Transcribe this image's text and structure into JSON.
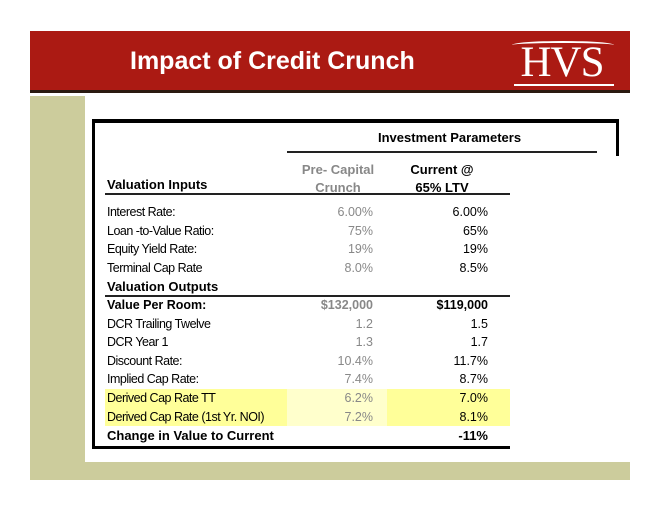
{
  "header": {
    "title": "Impact of Credit Crunch",
    "logo": "HVS"
  },
  "table": {
    "group_header": "Investment Parameters",
    "inputs_header": "Valuation Inputs",
    "col_pre": [
      "Pre- Capital",
      "Crunch"
    ],
    "col_cur": [
      "Current @",
      "65% LTV"
    ],
    "inputs": [
      {
        "label": "Interest Rate:",
        "pre": "6.00%",
        "cur": "6.00%"
      },
      {
        "label": "Loan -to-Value Ratio:",
        "pre": "75%",
        "cur": "65%"
      },
      {
        "label": "Equity Yield Rate:",
        "pre": "19%",
        "cur": "19%"
      },
      {
        "label": "Terminal Cap Rate",
        "pre": "8.0%",
        "cur": "8.5%"
      }
    ],
    "outputs_header": "Valuation Outputs",
    "outputs": [
      {
        "label": "Value Per Room:",
        "pre": "$132,000",
        "cur": "$119,000"
      },
      {
        "label": "DCR Trailing Twelve",
        "pre": "1.2",
        "cur": "1.5"
      },
      {
        "label": "DCR Year 1",
        "pre": "1.3",
        "cur": "1.7"
      },
      {
        "label": "Discount Rate:",
        "pre": "10.4%",
        "cur": "11.7%"
      },
      {
        "label": "Implied Cap Rate:",
        "pre": "7.4%",
        "cur": "8.7%"
      },
      {
        "label": "Derived Cap Rate TT",
        "pre": "6.2%",
        "cur": "7.0%"
      },
      {
        "label": "Derived  Cap Rate (1st Yr. NOI)",
        "pre": "7.2%",
        "cur": "8.1%"
      }
    ],
    "change": {
      "label": "Change in Value to Current",
      "cur": "-11%"
    }
  },
  "colors": {
    "red": "#ab1a13",
    "olive": "#cccc9c",
    "highlight": "#ffff99"
  }
}
